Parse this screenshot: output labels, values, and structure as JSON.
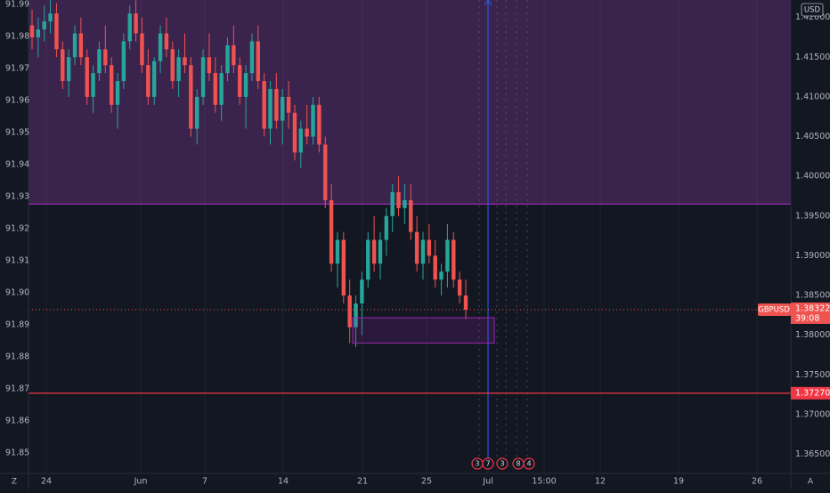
{
  "chart_data": {
    "type": "candlestick",
    "symbol": "GBPUSD",
    "currency": "USD",
    "last_price": "1.38322",
    "countdown": "39:08",
    "left_axis": {
      "ticks": [
        "91.99",
        "91.98",
        "91.97",
        "91.96",
        "91.95",
        "91.94",
        "91.93",
        "91.92",
        "91.91",
        "91.90",
        "91.89",
        "91.88",
        "91.87",
        "91.86",
        "91.85"
      ]
    },
    "right_axis": {
      "range": [
        1.3626,
        1.4222
      ],
      "ticks": [
        "1.42000",
        "1.41500",
        "1.41000",
        "1.40500",
        "1.40000",
        "1.39500",
        "1.39000",
        "1.38500",
        "1.38000",
        "1.37500",
        "1.37000",
        "1.36500"
      ]
    },
    "x_ticks": [
      "24",
      "Jun",
      "7",
      "14",
      "21",
      "25",
      "Jul",
      "15:00",
      "12",
      "19",
      "26"
    ],
    "zone_top": 1.3965,
    "support_line": {
      "value": 1.3727,
      "label": "1.37270"
    },
    "demand_box": {
      "top": 1.3822,
      "bottom": 1.379
    },
    "markers": [
      "3",
      "7",
      "3",
      "8",
      "4"
    ],
    "axis_buttons": {
      "left": "Z",
      "right": "A"
    },
    "colors": {
      "up": "#26a69a",
      "down": "#ef5350",
      "zone": "#3c2450",
      "line": "#f23645",
      "purple": "#9c27b0"
    },
    "candles": [
      [
        1.419,
        1.421,
        1.416,
        1.4175
      ],
      [
        1.4175,
        1.42,
        1.415,
        1.4185
      ],
      [
        1.4185,
        1.4215,
        1.417,
        1.4195
      ],
      [
        1.4195,
        1.4225,
        1.418,
        1.4205
      ],
      [
        1.4205,
        1.4218,
        1.415,
        1.416
      ],
      [
        1.416,
        1.417,
        1.411,
        1.412
      ],
      [
        1.412,
        1.416,
        1.41,
        1.415
      ],
      [
        1.415,
        1.419,
        1.414,
        1.418
      ],
      [
        1.418,
        1.42,
        1.414,
        1.415
      ],
      [
        1.415,
        1.416,
        1.409,
        1.41
      ],
      [
        1.41,
        1.414,
        1.408,
        1.413
      ],
      [
        1.413,
        1.417,
        1.412,
        1.416
      ],
      [
        1.416,
        1.419,
        1.413,
        1.414
      ],
      [
        1.414,
        1.415,
        1.408,
        1.409
      ],
      [
        1.409,
        1.413,
        1.406,
        1.412
      ],
      [
        1.412,
        1.418,
        1.411,
        1.417
      ],
      [
        1.417,
        1.4215,
        1.416,
        1.4205
      ],
      [
        1.4205,
        1.4225,
        1.417,
        1.418
      ],
      [
        1.418,
        1.42,
        1.413,
        1.414
      ],
      [
        1.414,
        1.416,
        1.409,
        1.41
      ],
      [
        1.41,
        1.415,
        1.409,
        1.4145
      ],
      [
        1.4145,
        1.419,
        1.413,
        1.418
      ],
      [
        1.418,
        1.42,
        1.415,
        1.416
      ],
      [
        1.416,
        1.417,
        1.411,
        1.412
      ],
      [
        1.412,
        1.416,
        1.41,
        1.415
      ],
      [
        1.415,
        1.418,
        1.413,
        1.414
      ],
      [
        1.414,
        1.415,
        1.405,
        1.406
      ],
      [
        1.406,
        1.411,
        1.404,
        1.41
      ],
      [
        1.41,
        1.416,
        1.409,
        1.415
      ],
      [
        1.415,
        1.418,
        1.412,
        1.413
      ],
      [
        1.413,
        1.415,
        1.408,
        1.409
      ],
      [
        1.409,
        1.414,
        1.407,
        1.413
      ],
      [
        1.413,
        1.4175,
        1.412,
        1.4165
      ],
      [
        1.4165,
        1.419,
        1.413,
        1.414
      ],
      [
        1.414,
        1.415,
        1.409,
        1.41
      ],
      [
        1.41,
        1.414,
        1.406,
        1.413
      ],
      [
        1.413,
        1.418,
        1.412,
        1.417
      ],
      [
        1.417,
        1.419,
        1.411,
        1.412
      ],
      [
        1.412,
        1.413,
        1.405,
        1.406
      ],
      [
        1.406,
        1.412,
        1.404,
        1.411
      ],
      [
        1.411,
        1.413,
        1.406,
        1.407
      ],
      [
        1.407,
        1.411,
        1.404,
        1.41
      ],
      [
        1.41,
        1.412,
        1.406,
        1.408
      ],
      [
        1.408,
        1.409,
        1.402,
        1.403
      ],
      [
        1.403,
        1.407,
        1.401,
        1.406
      ],
      [
        1.406,
        1.409,
        1.404,
        1.405
      ],
      [
        1.405,
        1.41,
        1.404,
        1.409
      ],
      [
        1.409,
        1.41,
        1.403,
        1.404
      ],
      [
        1.404,
        1.405,
        1.396,
        1.397
      ],
      [
        1.397,
        1.399,
        1.388,
        1.389
      ],
      [
        1.389,
        1.393,
        1.386,
        1.392
      ],
      [
        1.392,
        1.393,
        1.384,
        1.385
      ],
      [
        1.385,
        1.387,
        1.379,
        1.381
      ],
      [
        1.381,
        1.385,
        1.3785,
        1.384
      ],
      [
        1.384,
        1.388,
        1.38,
        1.387
      ],
      [
        1.387,
        1.393,
        1.386,
        1.392
      ],
      [
        1.392,
        1.395,
        1.388,
        1.389
      ],
      [
        1.389,
        1.393,
        1.387,
        1.392
      ],
      [
        1.392,
        1.396,
        1.39,
        1.395
      ],
      [
        1.395,
        1.399,
        1.393,
        1.398
      ],
      [
        1.398,
        1.4,
        1.395,
        1.396
      ],
      [
        1.396,
        1.399,
        1.394,
        1.397
      ],
      [
        1.397,
        1.399,
        1.392,
        1.393
      ],
      [
        1.393,
        1.395,
        1.388,
        1.389
      ],
      [
        1.389,
        1.393,
        1.387,
        1.392
      ],
      [
        1.392,
        1.394,
        1.389,
        1.39
      ],
      [
        1.39,
        1.392,
        1.386,
        1.387
      ],
      [
        1.387,
        1.389,
        1.385,
        1.388
      ],
      [
        1.388,
        1.394,
        1.386,
        1.392
      ],
      [
        1.392,
        1.393,
        1.386,
        1.387
      ],
      [
        1.387,
        1.388,
        1.384,
        1.385
      ],
      [
        1.385,
        1.387,
        1.382,
        1.3832
      ]
    ]
  }
}
